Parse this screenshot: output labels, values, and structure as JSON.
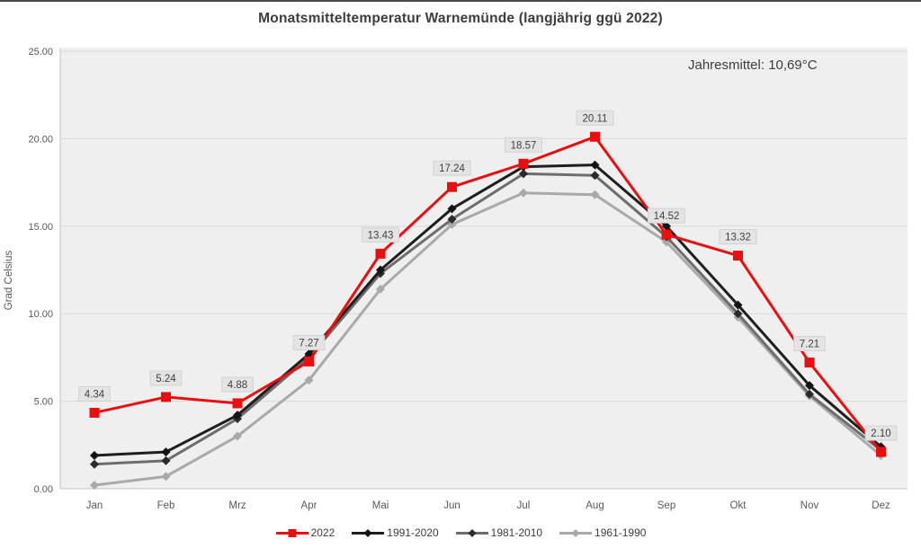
{
  "window": {
    "title": "Monatsmitteltemperatur Warnemünde (langjährig ggü 2022)"
  },
  "annotation": {
    "annual_mean_label": "Jahresmittel: 10,69°C"
  },
  "colors": {
    "plot_bg": "#efefef",
    "gridline": "#d9d9d9",
    "axis_line": "#c3c3c3",
    "tick_text": "#595959",
    "title_text": "#3d3d3d",
    "label_box_bg": "#e4e4e4",
    "label_box_border": "#d2d2d2",
    "label_text": "#3f3f3f",
    "series_2022": "#ea0f0f",
    "series_1991_2020": "#1e1e1e",
    "series_1981_2010": "#6d6d6d",
    "series_1981_2010_marker": "#2b2b2b",
    "series_1961_1990": "#a9a9a9"
  },
  "chart_data": {
    "type": "line",
    "title": "Monatsmitteltemperatur Warnemünde (langjährig ggü 2022)",
    "xlabel": "",
    "ylabel": "Grad Celsius",
    "ylim": [
      0,
      25
    ],
    "ytick_step": 5,
    "ytick_labels": [
      "0.00",
      "5.00",
      "10.00",
      "15.00",
      "20.00",
      "25.00"
    ],
    "grid": true,
    "legend_position": "bottom",
    "annotation": "Jahresmittel: 10,69°C",
    "categories": [
      "Jan",
      "Feb",
      "Mrz",
      "Apr",
      "Mai",
      "Jun",
      "Jul",
      "Aug",
      "Sep",
      "Okt",
      "Nov",
      "Dez"
    ],
    "series": [
      {
        "name": "2022",
        "marker": "square",
        "color": "#ea0f0f",
        "marker_color": "#ea0f0f",
        "values": [
          4.34,
          5.24,
          4.88,
          7.27,
          13.43,
          17.24,
          18.57,
          20.11,
          14.52,
          13.32,
          7.21,
          2.1
        ],
        "data_labels": [
          "4.34",
          "5.24",
          "4.88",
          "7.27",
          "13.43",
          "17.24",
          "18.57",
          "20.11",
          "14.52",
          "13.32",
          "7.21",
          "2.10"
        ]
      },
      {
        "name": "1991-2020",
        "marker": "diamond",
        "color": "#1e1e1e",
        "marker_color": "#141414",
        "values": [
          1.9,
          2.1,
          4.2,
          7.7,
          12.5,
          16.0,
          18.4,
          18.5,
          15.0,
          10.5,
          5.9,
          2.4
        ]
      },
      {
        "name": "1981-2010",
        "marker": "diamond",
        "color": "#6d6d6d",
        "marker_color": "#2b2b2b",
        "values": [
          1.4,
          1.6,
          4.0,
          7.5,
          12.3,
          15.4,
          18.0,
          17.9,
          14.4,
          10.0,
          5.4,
          2.2
        ]
      },
      {
        "name": "1961-1990",
        "marker": "diamond",
        "color": "#a9a9a9",
        "marker_color": "#a9a9a9",
        "values": [
          0.2,
          0.7,
          3.0,
          6.2,
          11.4,
          15.1,
          16.9,
          16.8,
          14.1,
          9.8,
          5.3,
          1.9
        ]
      }
    ]
  }
}
